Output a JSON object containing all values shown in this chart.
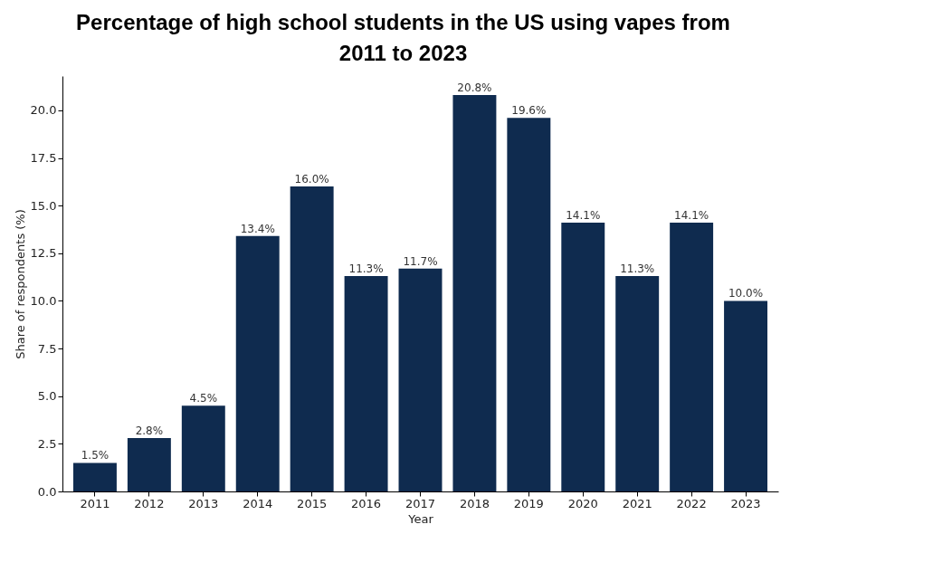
{
  "chart_data": {
    "type": "bar",
    "title": "Percentage of high school students in the US using vapes from 2011 to 2023",
    "xlabel": "Year",
    "ylabel": "Share of respondents (%)",
    "categories": [
      "2011",
      "2012",
      "2013",
      "2014",
      "2015",
      "2016",
      "2017",
      "2018",
      "2019",
      "2020",
      "2021",
      "2022",
      "2023"
    ],
    "values": [
      1.5,
      2.8,
      4.5,
      13.4,
      16.0,
      11.3,
      11.7,
      20.8,
      19.6,
      14.1,
      11.3,
      14.1,
      10.0
    ],
    "value_labels": [
      "1.5%",
      "2.8%",
      "4.5%",
      "13.4%",
      "16.0%",
      "11.3%",
      "11.7%",
      "20.8%",
      "19.6%",
      "14.1%",
      "11.3%",
      "14.1%",
      "10.0%"
    ],
    "color": "#0f2b4f",
    "ylim": [
      0,
      21.8
    ],
    "yticks": [
      {
        "value": 0,
        "label": "0.0"
      },
      2.5,
      {
        "value": 5,
        "label": "5.0"
      },
      7.5,
      {
        "value": 10,
        "label": "10.0"
      },
      12.5,
      {
        "value": 15,
        "label": "15.0"
      },
      17.5,
      {
        "value": 20,
        "label": "20.0"
      }
    ],
    "grid": false
  }
}
